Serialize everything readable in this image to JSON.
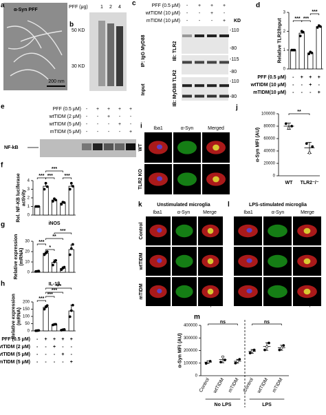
{
  "panel_a": {
    "label": "a",
    "title": "α-Syn PFF",
    "scale": "200 nm"
  },
  "panel_b": {
    "label": "b",
    "axis_label": "PFF (μg)",
    "lanes": [
      "1",
      "2",
      "4"
    ],
    "markers": [
      "50 KD",
      "30 KD"
    ]
  },
  "panel_c": {
    "label": "c",
    "treatments": [
      {
        "name": "PFF (0.5 μM)",
        "signs": [
          "-",
          "+",
          "+",
          "+"
        ]
      },
      {
        "name": "wtTIDM (10 μM)",
        "signs": [
          "-",
          "-",
          "+",
          "-"
        ]
      },
      {
        "name": "mTIDM (10 μM)",
        "signs": [
          "-",
          "-",
          "-",
          "+"
        ]
      }
    ],
    "kd": "KD",
    "ip_label": "IP: IgG MyD88",
    "ib_top": "IB: TLR2",
    "input": "Input",
    "ib_bottom": "IB: MyD88 TLR2",
    "markers": [
      "-110",
      "-80",
      "-115",
      "-80",
      "-110",
      "-80"
    ]
  },
  "panel_e": {
    "label": "e",
    "treatments": [
      {
        "name": "PFF (0.5 μM)",
        "signs": [
          "-",
          "+",
          "+",
          "+",
          "+"
        ]
      },
      {
        "name": "wtTIDM (2 μM)",
        "signs": [
          "-",
          "-",
          "+",
          "-",
          "-"
        ]
      },
      {
        "name": "wtTIDM (5 μM)",
        "signs": [
          "-",
          "-",
          "-",
          "+",
          "-"
        ]
      },
      {
        "name": "mTIDM (5 μM)",
        "signs": [
          "-",
          "-",
          "-",
          "-",
          "+"
        ]
      }
    ],
    "band": "NF-kB"
  },
  "panel_i": {
    "label": "i",
    "columns": [
      "Iba1",
      "α-Syn",
      "Merged"
    ],
    "rows": [
      "WT",
      "TLR2 KO"
    ],
    "scale": "10 μm"
  },
  "panel_k": {
    "label": "k",
    "title": "Unstimulated microglia",
    "columns": [
      "Iba1",
      "α-Syn",
      "Merge"
    ],
    "rows": [
      "Control",
      "wtTIDM",
      "mTIDM"
    ],
    "scale": "10 μm"
  },
  "panel_l": {
    "label": "l",
    "title": "LPS-stimulated microglia",
    "columns": [
      "Iba1",
      "α-Syn",
      "Merge"
    ],
    "scale": "10 μm"
  },
  "chart_data": [
    {
      "label": "d",
      "type": "bar",
      "ylabel": [
        "Relative TLR2/Input"
      ],
      "color": "#ffffff",
      "values": [
        1,
        1.9,
        0.85,
        2.25
      ],
      "errors": [
        0,
        0.12,
        0.05,
        0.08
      ],
      "points": [
        [
          1,
          1,
          1
        ],
        [
          1.75,
          2.0,
          1.95
        ],
        [
          0.8,
          0.9,
          0.85
        ],
        [
          2.2,
          2.3,
          2.25
        ]
      ],
      "ylim": [
        0,
        3
      ],
      "yticks": [
        0,
        1,
        2,
        3
      ],
      "significance": [
        "***",
        "***",
        "***"
      ],
      "treatments": [
        {
          "name": "PFF (0.5 μM)",
          "signs": [
            "-",
            "+",
            "+",
            "+"
          ]
        },
        {
          "name": "wtTIDM (10 μM)",
          "signs": [
            "-",
            "-",
            "+",
            "-"
          ]
        },
        {
          "name": "mTIDM(10 μM)",
          "signs": [
            "-",
            "-",
            "-",
            "+"
          ]
        }
      ]
    },
    {
      "label": "f",
      "type": "bar",
      "ylabel": [
        "Rel. NF-KB luciferase",
        "activity"
      ],
      "color": "#ffffff",
      "values": [
        1,
        3.35,
        1.75,
        1.4,
        3.35
      ],
      "errors": [
        0.03,
        0.35,
        0.2,
        0.2,
        0.35
      ],
      "points": [
        [
          1,
          1,
          1
        ],
        [
          3.0,
          3.7,
          3.3
        ],
        [
          1.6,
          1.9,
          1.75
        ],
        [
          1.25,
          1.5,
          1.45
        ],
        [
          3.0,
          3.7,
          3.35
        ]
      ],
      "ylim": [
        0,
        4
      ],
      "yticks": [
        0,
        1,
        2,
        3,
        4
      ],
      "significance": [
        "***",
        "***",
        "***",
        "***"
      ]
    },
    {
      "label": "g",
      "type": "bar",
      "title": "iNOS",
      "ylabel": [
        "Relative expression",
        "(mRNA)"
      ],
      "color": "#ffffff",
      "values": [
        1,
        18.5,
        9.5,
        3.8,
        22
      ],
      "errors": [
        0.2,
        1.5,
        2.5,
        1.5,
        4.5
      ],
      "points": [
        [
          0.8,
          1,
          1.2
        ],
        [
          17,
          18.5,
          20
        ],
        [
          7,
          10,
          11.5
        ],
        [
          2.5,
          4,
          5
        ],
        [
          17,
          23,
          27
        ]
      ],
      "ylim": [
        0,
        30
      ],
      "yticks": [
        0,
        10,
        20,
        30
      ],
      "significance": [
        "***",
        "*",
        "**",
        "***"
      ]
    },
    {
      "label": "h",
      "type": "bar",
      "title": "IL-1β",
      "ylabel": [
        "Relative expression",
        "(mRNA)"
      ],
      "color": "#ffffff",
      "values": [
        2,
        163,
        44,
        8,
        138
      ],
      "errors": [
        1,
        12,
        3,
        3,
        40
      ],
      "points": [
        [
          1,
          2,
          3
        ],
        [
          150,
          165,
          175
        ],
        [
          41,
          45,
          46
        ],
        [
          5,
          8,
          10
        ],
        [
          98,
          140,
          178
        ]
      ],
      "ylim": [
        0,
        200
      ],
      "yticks": [
        0,
        50,
        100,
        150,
        200
      ],
      "significance": [
        "***",
        "***",
        "***",
        "***"
      ],
      "treatments": [
        {
          "name": "PFF (0.5 μM)",
          "signs": [
            "-",
            "+",
            "+",
            "+",
            "+"
          ]
        },
        {
          "name": "wtTIDM (2 μM)",
          "signs": [
            "-",
            "-",
            "+",
            "-",
            "-"
          ]
        },
        {
          "name": "wtTIDM (5 μM)",
          "signs": [
            "-",
            "-",
            "-",
            "+",
            "-"
          ]
        },
        {
          "name": "mTIDM (5 μM)",
          "signs": [
            "-",
            "-",
            "-",
            "-",
            "+"
          ]
        }
      ]
    },
    {
      "label": "j",
      "type": "dot",
      "ylabel": [
        "α-Syn MFI (AU)"
      ],
      "color": "#000000",
      "categories": [
        "WT",
        "TLR2⁻/⁻"
      ],
      "values": [
        80000,
        45000
      ],
      "errors": [
        5000,
        9000
      ],
      "points": [
        [
          84000,
          77000,
          80000
        ],
        [
          52000,
          37000,
          47000
        ]
      ],
      "ylim": [
        0,
        100000
      ],
      "yticks": [
        0,
        20000,
        40000,
        60000,
        80000,
        100000
      ],
      "significance": [
        "**"
      ]
    },
    {
      "label": "m",
      "type": "dot",
      "ylabel": [
        "α-Syn MFI (AU)"
      ],
      "color": "#000000",
      "categories": [
        "Control",
        "wtTIDM",
        "mTIDM",
        "Control",
        "wtTIDM",
        "mTIDM"
      ],
      "groups": [
        "No LPS",
        "LPS"
      ],
      "values": [
        108000,
        128000,
        115000,
        193000,
        232000,
        222000
      ],
      "errors": [
        10000,
        25000,
        15000,
        15000,
        30000,
        20000
      ],
      "points": [
        [
          98000,
          110000,
          115000
        ],
        [
          108000,
          150000,
          125000
        ],
        [
          100000,
          115000,
          130000
        ],
        [
          180000,
          195000,
          205000
        ],
        [
          205000,
          230000,
          260000
        ],
        [
          205000,
          220000,
          240000
        ]
      ],
      "ylim": [
        0,
        400000
      ],
      "yticks": [
        0,
        100000,
        200000,
        300000,
        400000
      ],
      "significance": [
        "ns",
        "ns"
      ]
    }
  ]
}
